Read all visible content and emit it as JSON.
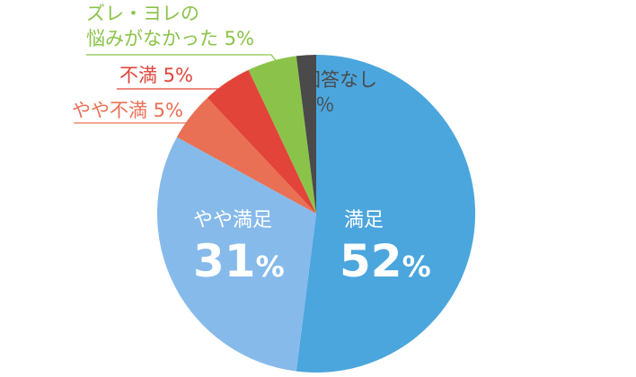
{
  "chart_data": {
    "type": "pie",
    "slices": [
      {
        "label": "満足",
        "value": 52,
        "pct": "52",
        "color": "#4ba6dd"
      },
      {
        "label": "やや満足",
        "value": 31,
        "pct": "31",
        "color": "#86baea"
      },
      {
        "label": "やや不満 5%",
        "value": 5,
        "color": "#e97054"
      },
      {
        "label": "不満 5%",
        "value": 5,
        "color": "#e2443a"
      },
      {
        "label_lines": [
          "ズレ・ヨレの",
          "悩みがなかった 5%"
        ],
        "value": 5,
        "color": "#8bc34a"
      },
      {
        "label_lines": [
          "回答なし",
          "2％"
        ],
        "value": 2,
        "color": "#4a4a4a"
      }
    ],
    "percent_sign": "%"
  }
}
